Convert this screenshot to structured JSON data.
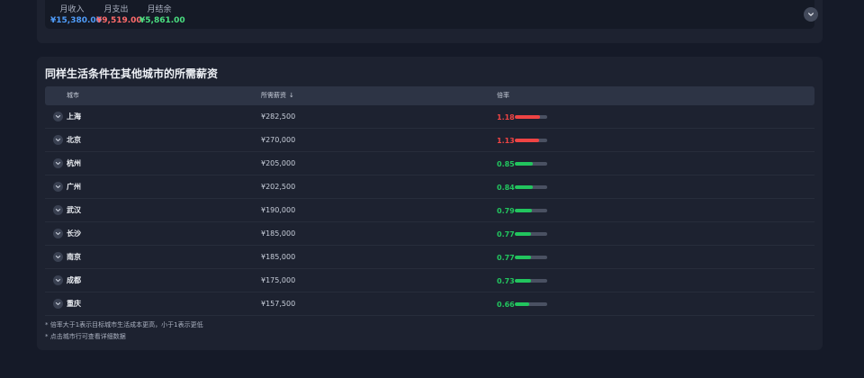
{
  "colors": {
    "income": "#4f9cf9",
    "expense": "#ff6b6b",
    "balance": "#4ade80",
    "high": "#ef4444",
    "low": "#22c55e"
  },
  "summary": {
    "stats": [
      {
        "label": "月收入",
        "value": "¥15,380.00",
        "kind": "income"
      },
      {
        "label": "月支出",
        "value": "¥9,519.00",
        "kind": "expense"
      },
      {
        "label": "月结余",
        "value": "¥5,861.00",
        "kind": "balance"
      }
    ],
    "expand_icon": "chevron-down-icon"
  },
  "section": {
    "title": "同样生活条件在其他城市的所需薪资"
  },
  "table": {
    "headers": {
      "city": "城市",
      "salary": "所需薪资",
      "ratio": "倍率"
    },
    "sort_icon": "arrow-down-icon",
    "row_icon": "chevron-down-icon",
    "bar_max": 1.5,
    "rows": [
      {
        "city": "上海",
        "salary": "¥282,500",
        "ratio": "1.18",
        "ratio_value": 1.18,
        "level": "high"
      },
      {
        "city": "北京",
        "salary": "¥270,000",
        "ratio": "1.13",
        "ratio_value": 1.13,
        "level": "high"
      },
      {
        "city": "杭州",
        "salary": "¥205,000",
        "ratio": "0.85",
        "ratio_value": 0.85,
        "level": "low"
      },
      {
        "city": "广州",
        "salary": "¥202,500",
        "ratio": "0.84",
        "ratio_value": 0.84,
        "level": "low"
      },
      {
        "city": "武汉",
        "salary": "¥190,000",
        "ratio": "0.79",
        "ratio_value": 0.79,
        "level": "low"
      },
      {
        "city": "长沙",
        "salary": "¥185,000",
        "ratio": "0.77",
        "ratio_value": 0.77,
        "level": "low"
      },
      {
        "city": "南京",
        "salary": "¥185,000",
        "ratio": "0.77",
        "ratio_value": 0.77,
        "level": "low"
      },
      {
        "city": "成都",
        "salary": "¥175,000",
        "ratio": "0.73",
        "ratio_value": 0.73,
        "level": "low"
      },
      {
        "city": "重庆",
        "salary": "¥157,500",
        "ratio": "0.66",
        "ratio_value": 0.66,
        "level": "low"
      }
    ]
  },
  "notes": [
    "* 倍率大于1表示目标城市生活成本更高，小于1表示更低",
    "* 点击城市行可查看详细数据"
  ]
}
